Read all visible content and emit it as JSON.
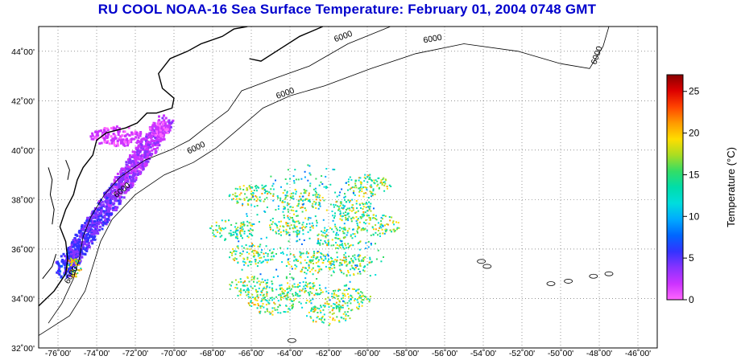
{
  "title": "RU COOL  NOAA-16  Sea Surface Temperature:  February 01, 2004 0748 GMT",
  "map": {
    "lon_range": [
      -77,
      -45
    ],
    "lat_range": [
      32,
      45
    ],
    "lon_ticks": [
      -76,
      -74,
      -72,
      -70,
      -68,
      -66,
      -64,
      -62,
      -60,
      -58,
      -56,
      -54,
      -52,
      -50,
      -48,
      -46
    ],
    "lat_ticks": [
      32,
      34,
      36,
      38,
      40,
      42,
      44
    ],
    "lon_labels": [
      "-76˚00'",
      "-74˚00'",
      "-72˚00'",
      "-70˚00'",
      "-68˚00'",
      "-66˚00'",
      "-64˚00'",
      "-62˚00'",
      "-60˚00'",
      "-58˚00'",
      "-56˚00'",
      "-54˚00'",
      "-52˚00'",
      "-50˚00'",
      "-48˚00'",
      "-46˚00'"
    ],
    "lat_labels": [
      "32˚00'",
      "34˚00'",
      "36˚00'",
      "38˚00'",
      "40˚00'",
      "42˚00'",
      "44˚00'"
    ],
    "grid": "dotted",
    "contour_label": "6000"
  },
  "colorbar": {
    "title": "Temperature (°C)",
    "range": [
      0,
      27
    ],
    "ticks": [
      0,
      5,
      10,
      15,
      20,
      25
    ],
    "tick_labels": [
      "0",
      "5",
      "10",
      "15",
      "20",
      "25"
    ],
    "colors": [
      "#ff66ff",
      "#cc33ff",
      "#8833ff",
      "#3333ff",
      "#0066ff",
      "#00aaff",
      "#00dddd",
      "#00ddaa",
      "#33dd66",
      "#aadd22",
      "#ffdd00",
      "#ff9900",
      "#ff4400",
      "#dd0000",
      "#880000"
    ]
  }
}
